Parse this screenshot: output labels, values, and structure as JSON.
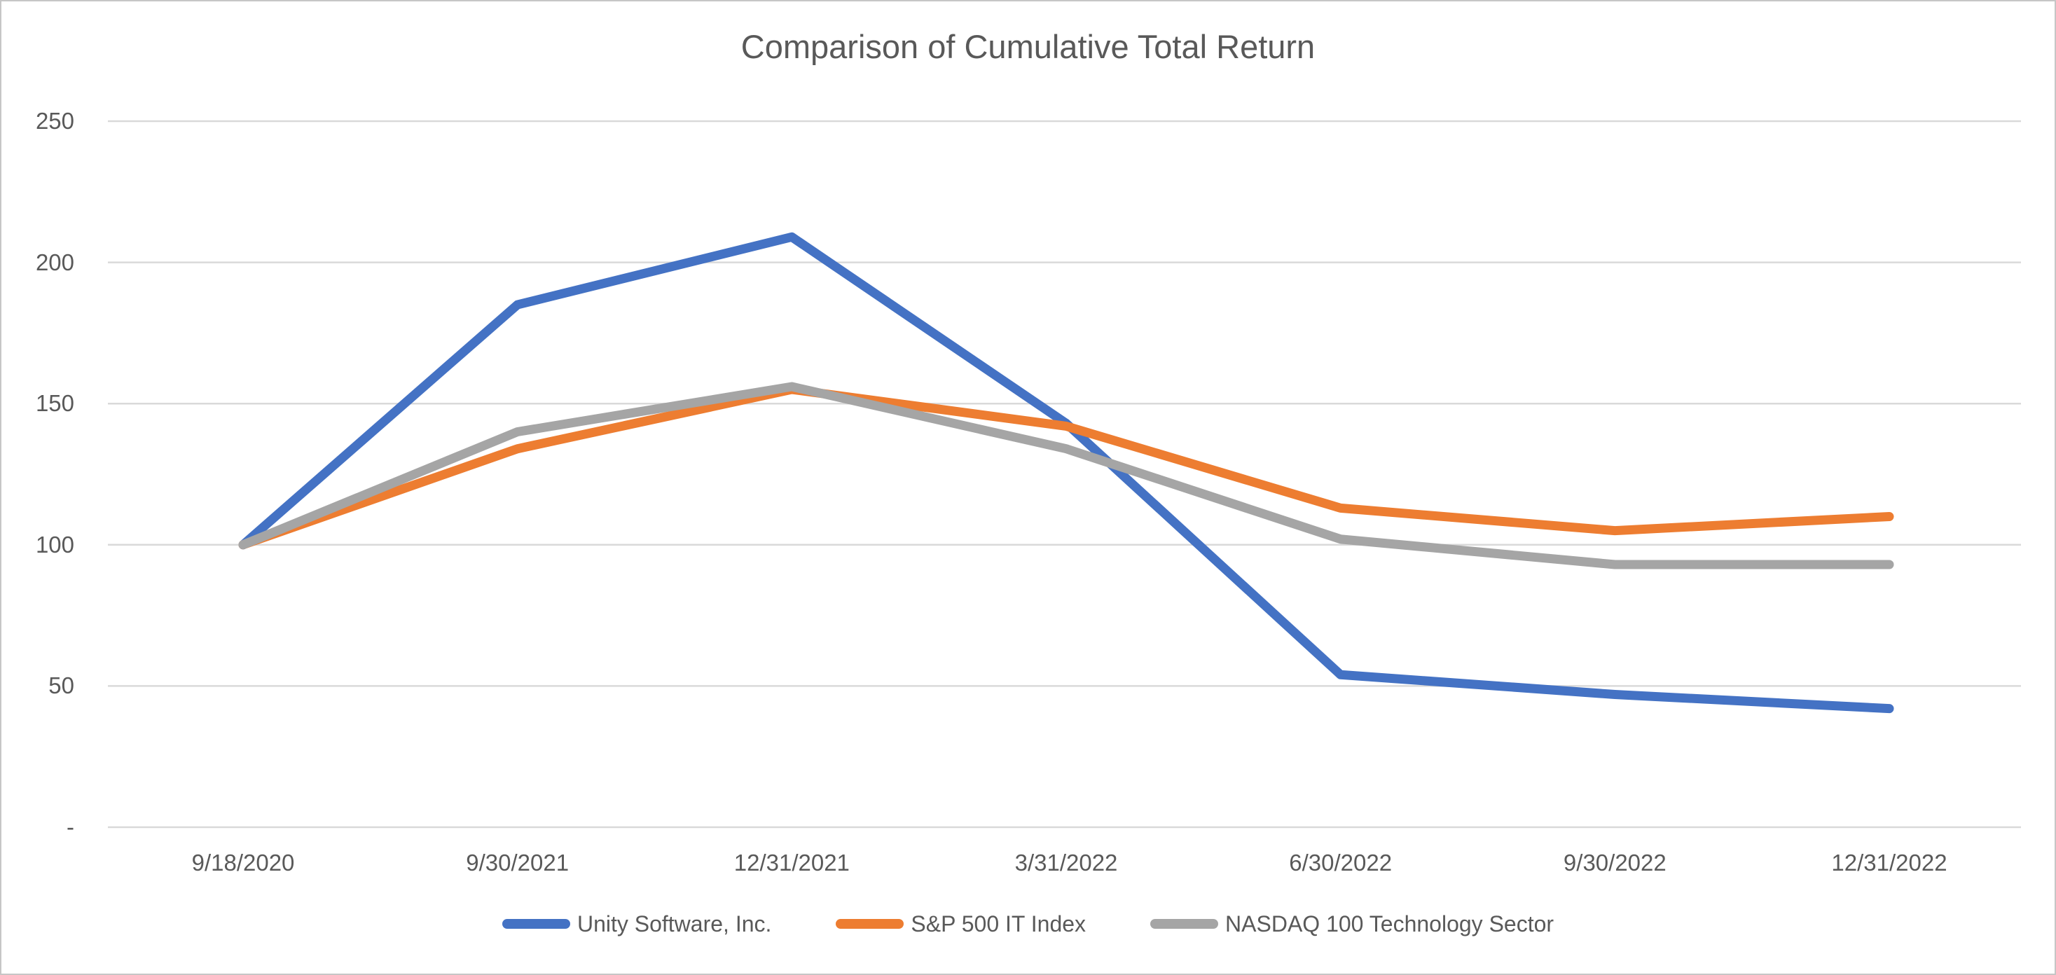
{
  "chart_data": {
    "type": "line",
    "title": "Comparison of Cumulative Total Return",
    "categories": [
      "9/18/2020",
      "9/30/2021",
      "12/31/2021",
      "3/31/2022",
      "6/30/2022",
      "9/30/2022",
      "12/31/2022"
    ],
    "series": [
      {
        "name": "Unity Software, Inc.",
        "color": "#4472C4",
        "values": [
          100,
          185,
          209,
          143,
          54,
          47,
          42
        ]
      },
      {
        "name": "S&P 500 IT Index",
        "color": "#ED7D31",
        "values": [
          100,
          134,
          155,
          142,
          113,
          105,
          110
        ]
      },
      {
        "name": "NASDAQ 100 Technology Sector",
        "color": "#A5A5A5",
        "values": [
          100,
          140,
          156,
          134,
          102,
          93,
          93
        ]
      }
    ],
    "y_axis": {
      "min": 0,
      "max": 250,
      "tick_step": 50,
      "ticks": [
        {
          "value": 250,
          "label": "250"
        },
        {
          "value": 200,
          "label": "200"
        },
        {
          "value": 150,
          "label": "150"
        },
        {
          "value": 100,
          "label": "100"
        },
        {
          "value": 50,
          "label": "50"
        },
        {
          "value": 0,
          "label": "-"
        }
      ]
    },
    "x_axis": {
      "label": "",
      "tick_count": 7
    },
    "ylabel": "",
    "xlabel": "",
    "grid": "horizontal",
    "legend_position": "bottom",
    "colors": {
      "grid_line": "#D9D9D9",
      "axis_text": "#595959",
      "title_text": "#595959",
      "frame_border": "#C6C6C6",
      "background": "#FFFFFF"
    }
  }
}
